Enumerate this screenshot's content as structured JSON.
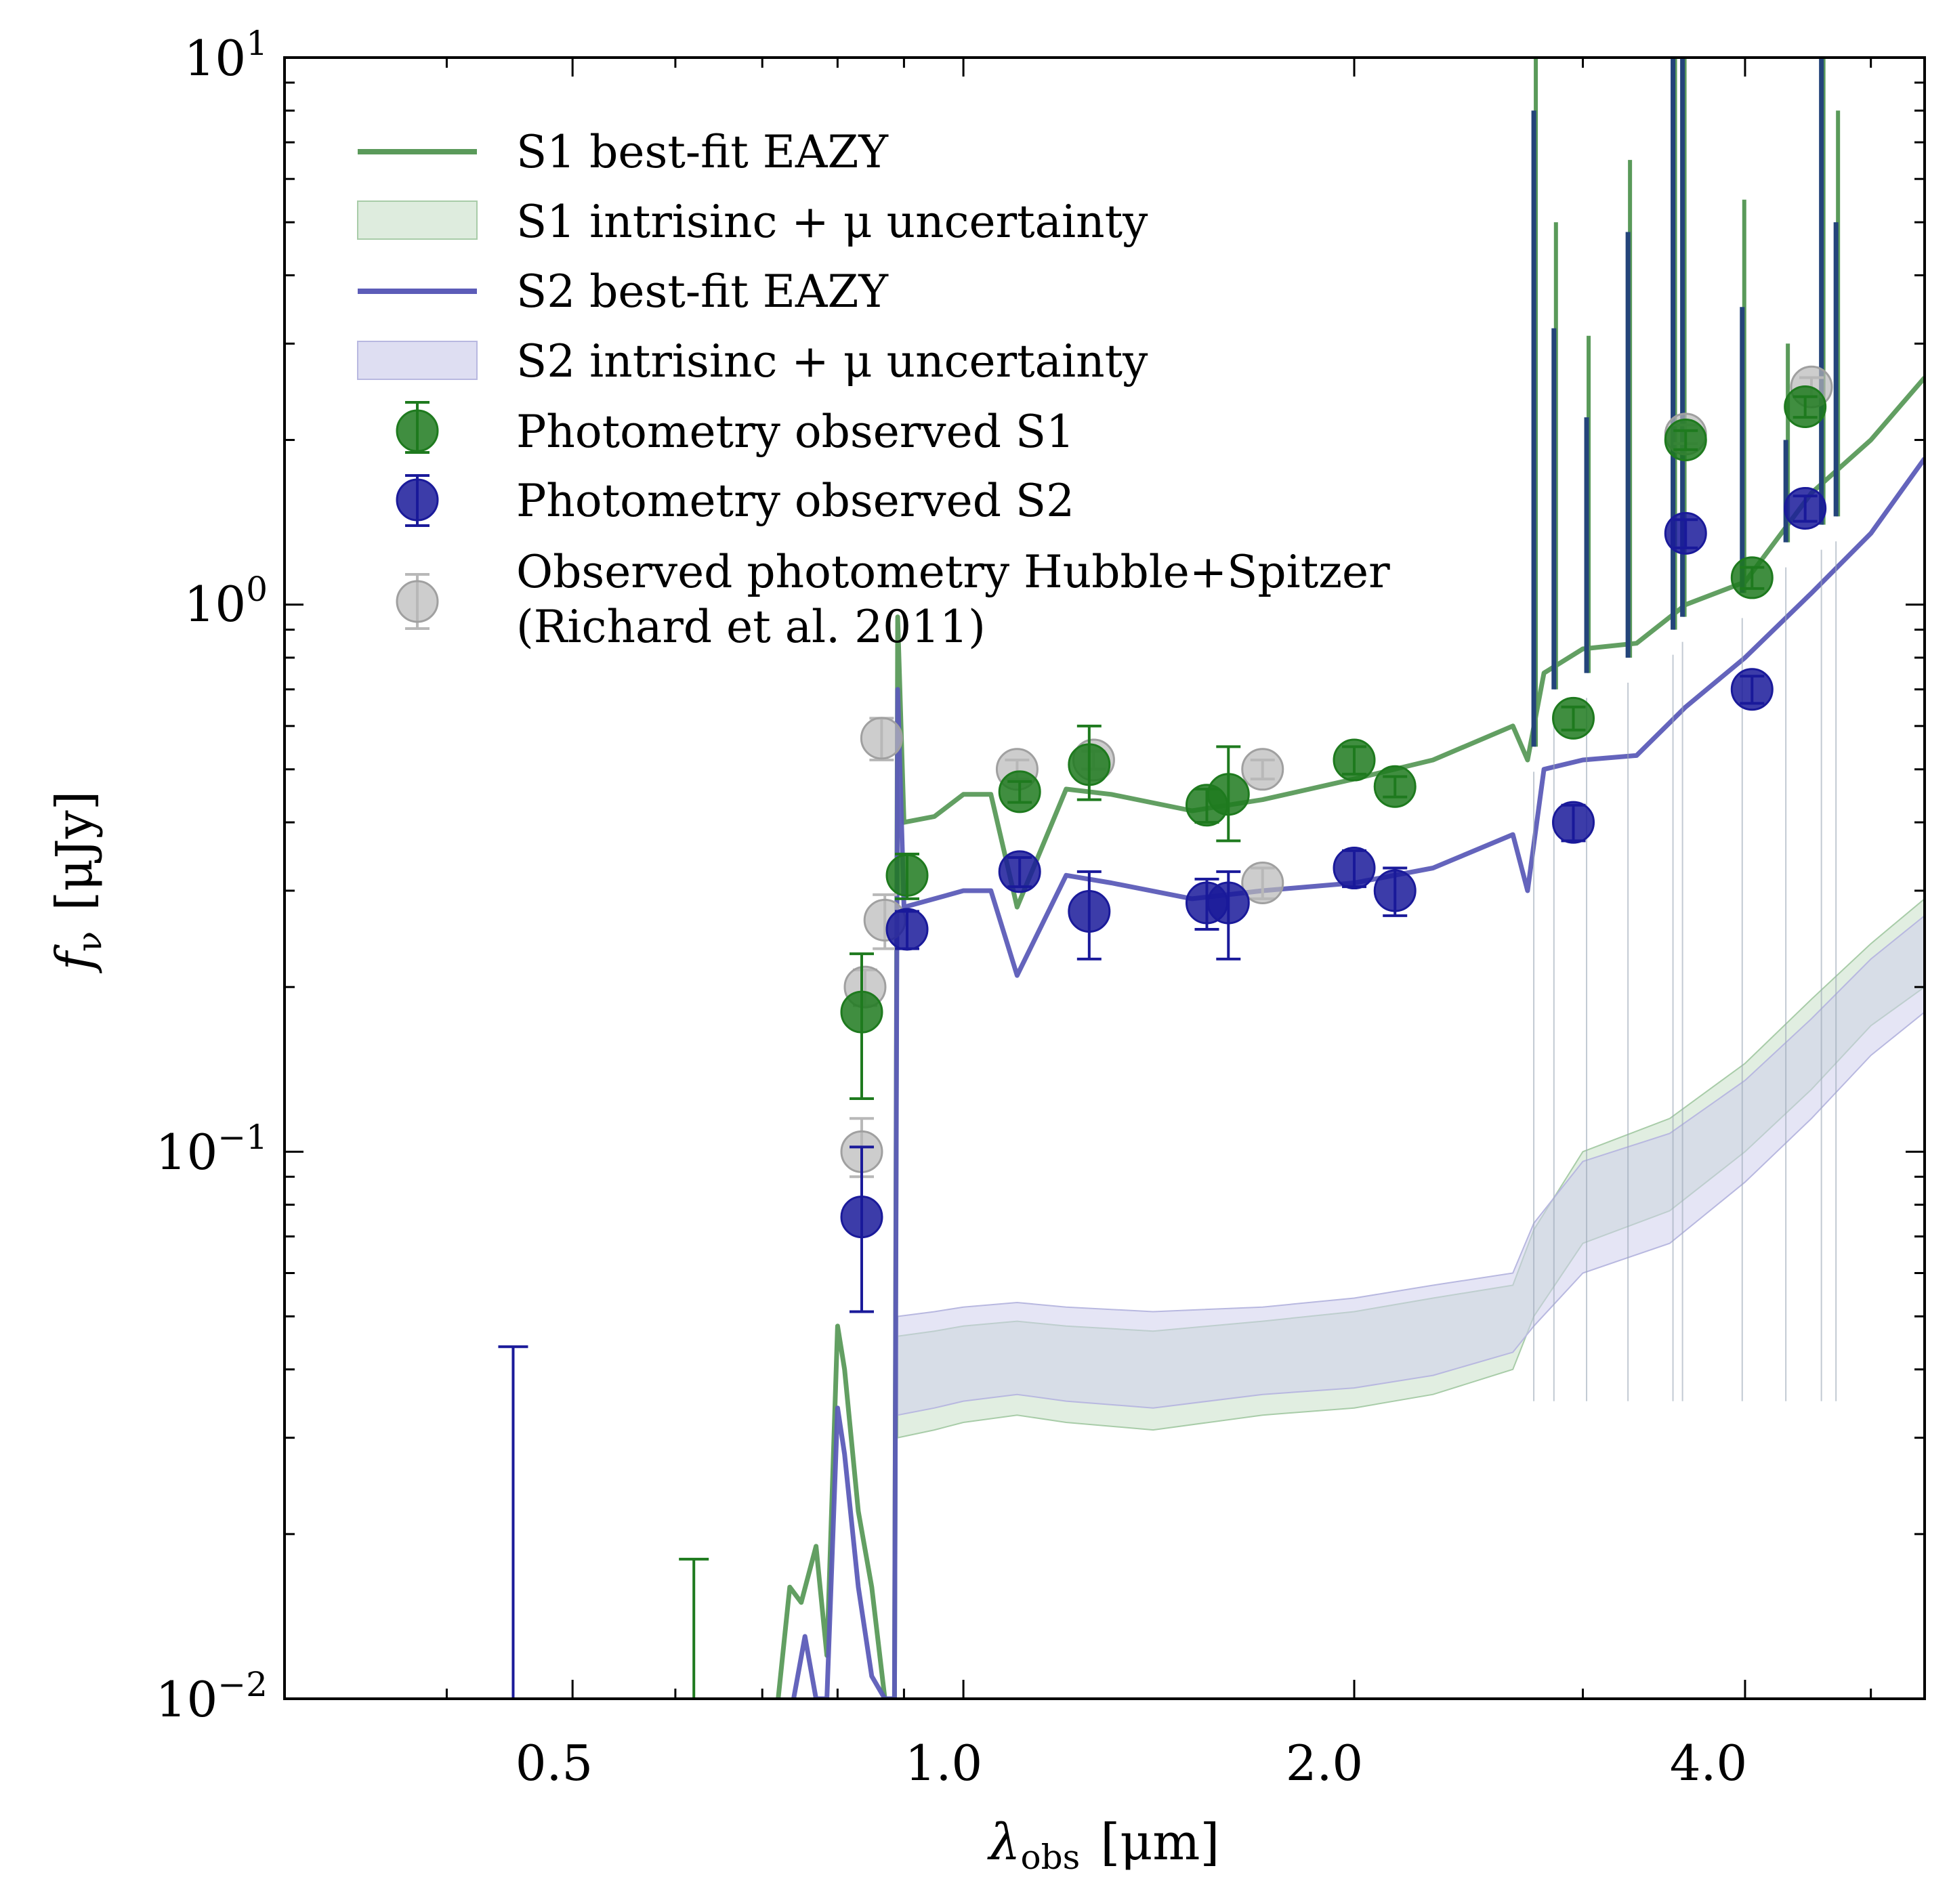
{
  "chart_data": {
    "type": "scatter",
    "xscale": "log",
    "yscale": "log",
    "xlim": [
      0.3,
      5.5
    ],
    "ylim": [
      0.01,
      10
    ],
    "xlabel": "λobs  [μm]",
    "xlabel_main": "λ",
    "xlabel_sub": "obs",
    "xlabel_unit": "[μm]",
    "ylabel": "fν  [μJy]",
    "ylabel_main": "f",
    "ylabel_sub": "ν",
    "ylabel_unit": "[μJy]",
    "x_ticks": [
      {
        "value": 0.5,
        "label": "0.5"
      },
      {
        "value": 1.0,
        "label": "1.0"
      },
      {
        "value": 2.0,
        "label": "2.0"
      },
      {
        "value": 4.0,
        "label": "4.0"
      }
    ],
    "y_ticks": [
      {
        "value": 10,
        "base": "10",
        "exp": "1"
      },
      {
        "value": 1,
        "base": "10",
        "exp": "0"
      },
      {
        "value": 0.1,
        "base": "10",
        "exp": "−1"
      },
      {
        "value": 0.01,
        "base": "10",
        "exp": "−2"
      }
    ],
    "legend_placement": "top-left",
    "colors": {
      "s1_line": "#5a9a5a",
      "s1_band": "#c8e0c8",
      "s2_line": "#5c5cb8",
      "s2_band": "#d0d0ec",
      "s1_points": "#1e7a1e",
      "s2_points": "#1a1a9a",
      "archival_points": "#b8b8b8",
      "emission_lines": "#24447a"
    },
    "legend": [
      {
        "key": "s1_line",
        "label": "S1 best-fit EAZY",
        "kind": "line"
      },
      {
        "key": "s1_band",
        "label": "S1 intrisinc + μ uncertainty",
        "kind": "band"
      },
      {
        "key": "s2_line",
        "label": "S2 best-fit EAZY",
        "kind": "line"
      },
      {
        "key": "s2_band",
        "label": "S2 intrisinc + μ uncertainty",
        "kind": "band"
      },
      {
        "key": "s1_points",
        "label": "Photometry observed S1",
        "kind": "point"
      },
      {
        "key": "s2_points",
        "label": "Photometry observed S2",
        "kind": "point"
      },
      {
        "key": "archival_points",
        "label": "Observed photometry Hubble+Spitzer",
        "label2": "(Richard et al. 2011)",
        "kind": "point"
      }
    ],
    "series": [
      {
        "name": "S1 best-fit EAZY",
        "kind": "line",
        "x": [
          0.72,
          0.735,
          0.75,
          0.77,
          0.785,
          0.8,
          0.81,
          0.83,
          0.85,
          0.87,
          0.885,
          0.89,
          0.9,
          0.95,
          1.0,
          1.05,
          1.1,
          1.2,
          1.3,
          1.5,
          1.7,
          2.0,
          2.3,
          2.65,
          2.72,
          2.8,
          3.0,
          3.3,
          3.6,
          4.0,
          4.5,
          5.0,
          5.5
        ],
        "y": [
          0.01,
          0.016,
          0.015,
          0.019,
          0.012,
          0.048,
          0.04,
          0.022,
          0.016,
          0.01,
          0.01,
          0.95,
          0.4,
          0.41,
          0.45,
          0.45,
          0.28,
          0.46,
          0.45,
          0.42,
          0.44,
          0.48,
          0.52,
          0.6,
          0.52,
          0.75,
          0.83,
          0.85,
          1.0,
          1.1,
          1.6,
          2.0,
          2.6
        ]
      },
      {
        "name": "S2 best-fit EAZY",
        "kind": "line",
        "x": [
          0.74,
          0.755,
          0.77,
          0.785,
          0.8,
          0.81,
          0.83,
          0.85,
          0.87,
          0.885,
          0.89,
          0.9,
          0.95,
          1.0,
          1.05,
          1.1,
          1.2,
          1.3,
          1.5,
          1.7,
          2.0,
          2.3,
          2.65,
          2.72,
          2.8,
          3.0,
          3.3,
          3.6,
          4.0,
          4.5,
          5.0,
          5.5
        ],
        "y": [
          0.01,
          0.013,
          0.01,
          0.01,
          0.034,
          0.028,
          0.016,
          0.011,
          0.01,
          0.01,
          0.7,
          0.28,
          0.29,
          0.3,
          0.3,
          0.21,
          0.32,
          0.31,
          0.29,
          0.3,
          0.31,
          0.33,
          0.38,
          0.3,
          0.5,
          0.52,
          0.53,
          0.65,
          0.8,
          1.05,
          1.35,
          1.85
        ]
      },
      {
        "name": "S1 intrisinc + μ uncertainty",
        "kind": "band",
        "x": [
          0.89,
          0.95,
          1.0,
          1.1,
          1.2,
          1.4,
          1.7,
          2.0,
          2.3,
          2.65,
          2.75,
          3.0,
          3.5,
          4.0,
          4.5,
          5.0,
          5.5
        ],
        "lower": [
          0.03,
          0.031,
          0.032,
          0.033,
          0.032,
          0.031,
          0.033,
          0.034,
          0.036,
          0.04,
          0.05,
          0.068,
          0.078,
          0.1,
          0.13,
          0.17,
          0.2
        ],
        "upper": [
          0.046,
          0.047,
          0.048,
          0.049,
          0.048,
          0.047,
          0.049,
          0.051,
          0.054,
          0.057,
          0.072,
          0.1,
          0.115,
          0.145,
          0.19,
          0.24,
          0.29
        ]
      },
      {
        "name": "S2 intrisinc + μ uncertainty",
        "kind": "band",
        "x": [
          0.89,
          0.95,
          1.0,
          1.1,
          1.2,
          1.4,
          1.7,
          2.0,
          2.3,
          2.65,
          2.75,
          3.0,
          3.5,
          4.0,
          4.5,
          5.0,
          5.5
        ],
        "lower": [
          0.033,
          0.034,
          0.035,
          0.036,
          0.035,
          0.034,
          0.036,
          0.037,
          0.039,
          0.043,
          0.048,
          0.06,
          0.068,
          0.088,
          0.115,
          0.15,
          0.18
        ],
        "upper": [
          0.05,
          0.051,
          0.052,
          0.053,
          0.052,
          0.051,
          0.052,
          0.054,
          0.057,
          0.06,
          0.074,
          0.096,
          0.108,
          0.135,
          0.175,
          0.225,
          0.27
        ]
      },
      {
        "name": "Photometry observed S1",
        "kind": "errorbar",
        "x": [
          0.835,
          0.905,
          1.105,
          1.25,
          1.54,
          1.6,
          2.0,
          2.15,
          2.95,
          3.6,
          4.05,
          4.45
        ],
        "y": [
          0.18,
          0.32,
          0.455,
          0.51,
          0.43,
          0.45,
          0.52,
          0.465,
          0.62,
          2.0,
          1.12,
          2.3
        ],
        "yerr_low": [
          0.055,
          0.03,
          0.02,
          0.07,
          0.03,
          0.08,
          0.03,
          0.02,
          0.03,
          0.08,
          0.05,
          0.1
        ],
        "yerr_high": [
          0.05,
          0.03,
          0.02,
          0.09,
          0.03,
          0.1,
          0.03,
          0.02,
          0.03,
          0.08,
          0.05,
          0.1
        ]
      },
      {
        "name": "Photometry observed S2",
        "kind": "errorbar",
        "x": [
          0.835,
          0.905,
          1.105,
          1.25,
          1.54,
          1.6,
          2.0,
          2.15,
          2.95,
          3.6,
          4.05,
          4.45
        ],
        "y": [
          0.076,
          0.255,
          0.325,
          0.275,
          0.285,
          0.285,
          0.33,
          0.3,
          0.4,
          1.35,
          0.7,
          1.5
        ],
        "yerr_low": [
          0.025,
          0.02,
          0.02,
          0.05,
          0.03,
          0.06,
          0.025,
          0.03,
          0.03,
          0.08,
          0.04,
          0.08
        ],
        "yerr_high": [
          0.026,
          0.02,
          0.02,
          0.05,
          0.03,
          0.04,
          0.025,
          0.03,
          0.03,
          0.08,
          0.04,
          0.08
        ]
      },
      {
        "name": "Observed photometry Hubble+Spitzer (Richard et al. 2011)",
        "kind": "errorbar",
        "x": [
          0.835,
          0.84,
          0.865,
          0.87,
          1.1,
          1.26,
          1.7,
          1.7,
          3.6,
          4.5
        ],
        "y": [
          0.1,
          0.2,
          0.57,
          0.265,
          0.5,
          0.52,
          0.5,
          0.31,
          2.05,
          2.5
        ],
        "yerr_low": [
          0.01,
          0.015,
          0.05,
          0.03,
          0.02,
          0.02,
          0.02,
          0.02,
          0.08,
          0.1
        ],
        "yerr_high": [
          0.015,
          0.015,
          0.05,
          0.03,
          0.02,
          0.02,
          0.02,
          0.02,
          0.08,
          0.1
        ]
      },
      {
        "name": "Upper limits",
        "kind": "upper_limit",
        "points": [
          {
            "series": "S2",
            "x": 0.45,
            "y": 0.044
          },
          {
            "series": "S1",
            "x": 0.62,
            "y": 0.018
          }
        ]
      },
      {
        "name": "Emission lines",
        "kind": "spikes",
        "lines": [
          {
            "x": 2.75,
            "s1_top": 10,
            "s2_top": 8,
            "base": 0.55
          },
          {
            "x": 2.85,
            "s1_top": 5.0,
            "s2_top": 3.2,
            "base": 0.7
          },
          {
            "x": 3.02,
            "s1_top": 3.1,
            "s2_top": 2.2,
            "base": 0.75
          },
          {
            "x": 3.25,
            "s1_top": 6.5,
            "s2_top": 4.8,
            "base": 0.8
          },
          {
            "x": 3.52,
            "s1_top": 10,
            "s2_top": 10,
            "base": 0.9
          },
          {
            "x": 3.58,
            "s1_top": 10,
            "s2_top": 10,
            "base": 0.95
          },
          {
            "x": 3.98,
            "s1_top": 5.5,
            "s2_top": 3.5,
            "base": 1.05
          },
          {
            "x": 4.3,
            "s1_top": 3.0,
            "s2_top": 2.0,
            "base": 1.3
          },
          {
            "x": 4.58,
            "s1_top": 10,
            "s2_top": 10,
            "base": 1.4
          },
          {
            "x": 4.7,
            "s1_top": 8,
            "s2_top": 5,
            "base": 1.45
          }
        ]
      }
    ]
  }
}
